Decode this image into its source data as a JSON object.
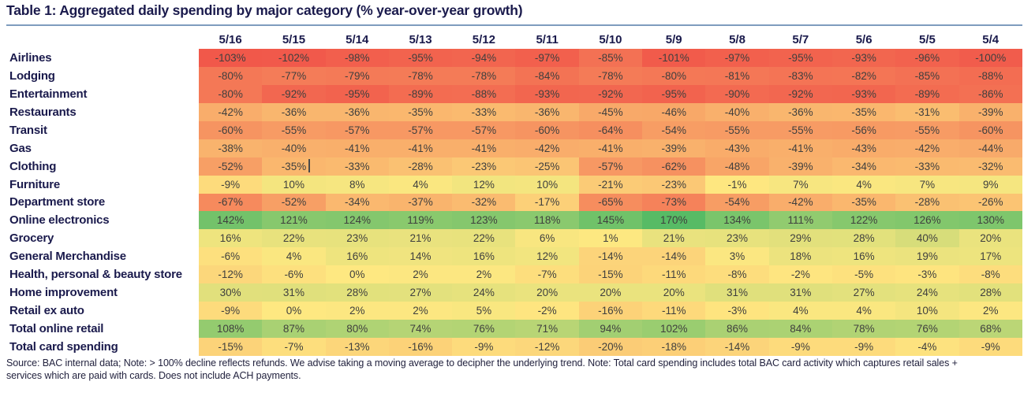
{
  "title": "Table 1: Aggregated daily spending by major category (% year-over-year growth)",
  "source_note": {
    "line1": "Source: BAC internal data; Note: > 100% decline reflects refunds. We advise taking a moving average to decipher the underlying trend. Note: Total card spending includes total BAC card activity which captures retail sales +",
    "line2": "services which are paid with cards. Does not include ACH payments."
  },
  "colors": {
    "title_text": "#1a1a4c",
    "header_text": "#1a1a4c",
    "row_label_text": "#1a1a4c",
    "cell_text": "#3f3f3e",
    "title_rule": "#7e9cbe",
    "note_text": "#23233f"
  },
  "chart_data": {
    "type": "heatmap",
    "title": "Table 1: Aggregated daily spending by major category (% year-over-year growth)",
    "unit": "% year-over-year growth",
    "value_suffix": "%",
    "columns": [
      "5/16",
      "5/15",
      "5/14",
      "5/13",
      "5/12",
      "5/11",
      "5/10",
      "5/9",
      "5/8",
      "5/7",
      "5/6",
      "5/5",
      "5/4"
    ],
    "rows": [
      {
        "label": "Airlines",
        "values": [
          -103,
          -102,
          -98,
          -95,
          -94,
          -97,
          -85,
          -101,
          -97,
          -95,
          -93,
          -96,
          -100
        ]
      },
      {
        "label": "Lodging",
        "values": [
          -80,
          -77,
          -79,
          -78,
          -78,
          -84,
          -78,
          -80,
          -81,
          -83,
          -82,
          -85,
          -88
        ]
      },
      {
        "label": "Entertainment",
        "values": [
          -80,
          -92,
          -95,
          -89,
          -88,
          -93,
          -92,
          -95,
          -90,
          -92,
          -93,
          -89,
          -86
        ]
      },
      {
        "label": "Restaurants",
        "values": [
          -42,
          -36,
          -36,
          -35,
          -33,
          -36,
          -45,
          -46,
          -40,
          -36,
          -35,
          -31,
          -39
        ]
      },
      {
        "label": "Transit",
        "values": [
          -60,
          -55,
          -57,
          -57,
          -57,
          -60,
          -64,
          -54,
          -55,
          -55,
          -56,
          -55,
          -60
        ]
      },
      {
        "label": "Gas",
        "values": [
          -38,
          -40,
          -41,
          -41,
          -41,
          -42,
          -41,
          -39,
          -43,
          -41,
          -43,
          -42,
          -44
        ]
      },
      {
        "label": "Clothing",
        "values": [
          -52,
          -35,
          -33,
          -28,
          -23,
          -25,
          -57,
          -62,
          -48,
          -39,
          -34,
          -33,
          -32
        ]
      },
      {
        "label": "Furniture",
        "values": [
          -9,
          10,
          8,
          4,
          12,
          10,
          -21,
          -23,
          -1,
          7,
          4,
          7,
          9
        ]
      },
      {
        "label": "Department store",
        "values": [
          -67,
          -52,
          -34,
          -37,
          -32,
          -17,
          -65,
          -73,
          -54,
          -42,
          -35,
          -28,
          -26
        ]
      },
      {
        "label": "Online electronics",
        "values": [
          142,
          121,
          124,
          119,
          123,
          118,
          145,
          170,
          134,
          111,
          122,
          126,
          130
        ]
      },
      {
        "label": "Grocery",
        "values": [
          16,
          22,
          23,
          21,
          22,
          6,
          1,
          21,
          23,
          29,
          28,
          40,
          20
        ]
      },
      {
        "label": "General Merchandise",
        "values": [
          -6,
          4,
          16,
          14,
          16,
          12,
          -14,
          -14,
          3,
          18,
          16,
          19,
          17
        ]
      },
      {
        "label": "Health, personal & beauty store",
        "values": [
          -12,
          -6,
          0,
          2,
          2,
          -7,
          -15,
          -11,
          -8,
          -2,
          -5,
          -3,
          -8
        ]
      },
      {
        "label": "Home improvement",
        "values": [
          30,
          31,
          28,
          27,
          24,
          20,
          20,
          20,
          31,
          31,
          27,
          24,
          28
        ]
      },
      {
        "label": "Retail ex auto",
        "values": [
          -9,
          0,
          2,
          2,
          5,
          -2,
          -16,
          -11,
          -3,
          4,
          4,
          10,
          2
        ]
      },
      {
        "label": "Total online retail",
        "values": [
          108,
          87,
          80,
          74,
          76,
          71,
          94,
          102,
          86,
          84,
          78,
          76,
          68
        ]
      },
      {
        "label": "Total card spending",
        "values": [
          -15,
          -7,
          -13,
          -16,
          -9,
          -12,
          -20,
          -18,
          -14,
          -9,
          -9,
          -4,
          -9
        ]
      }
    ],
    "color_scale": {
      "domain": [
        -103,
        0,
        170
      ],
      "min_color": "#F1584A",
      "mid_color": "#FEE881",
      "max_color": "#57BB65"
    },
    "legend": "none",
    "grid": "off"
  }
}
